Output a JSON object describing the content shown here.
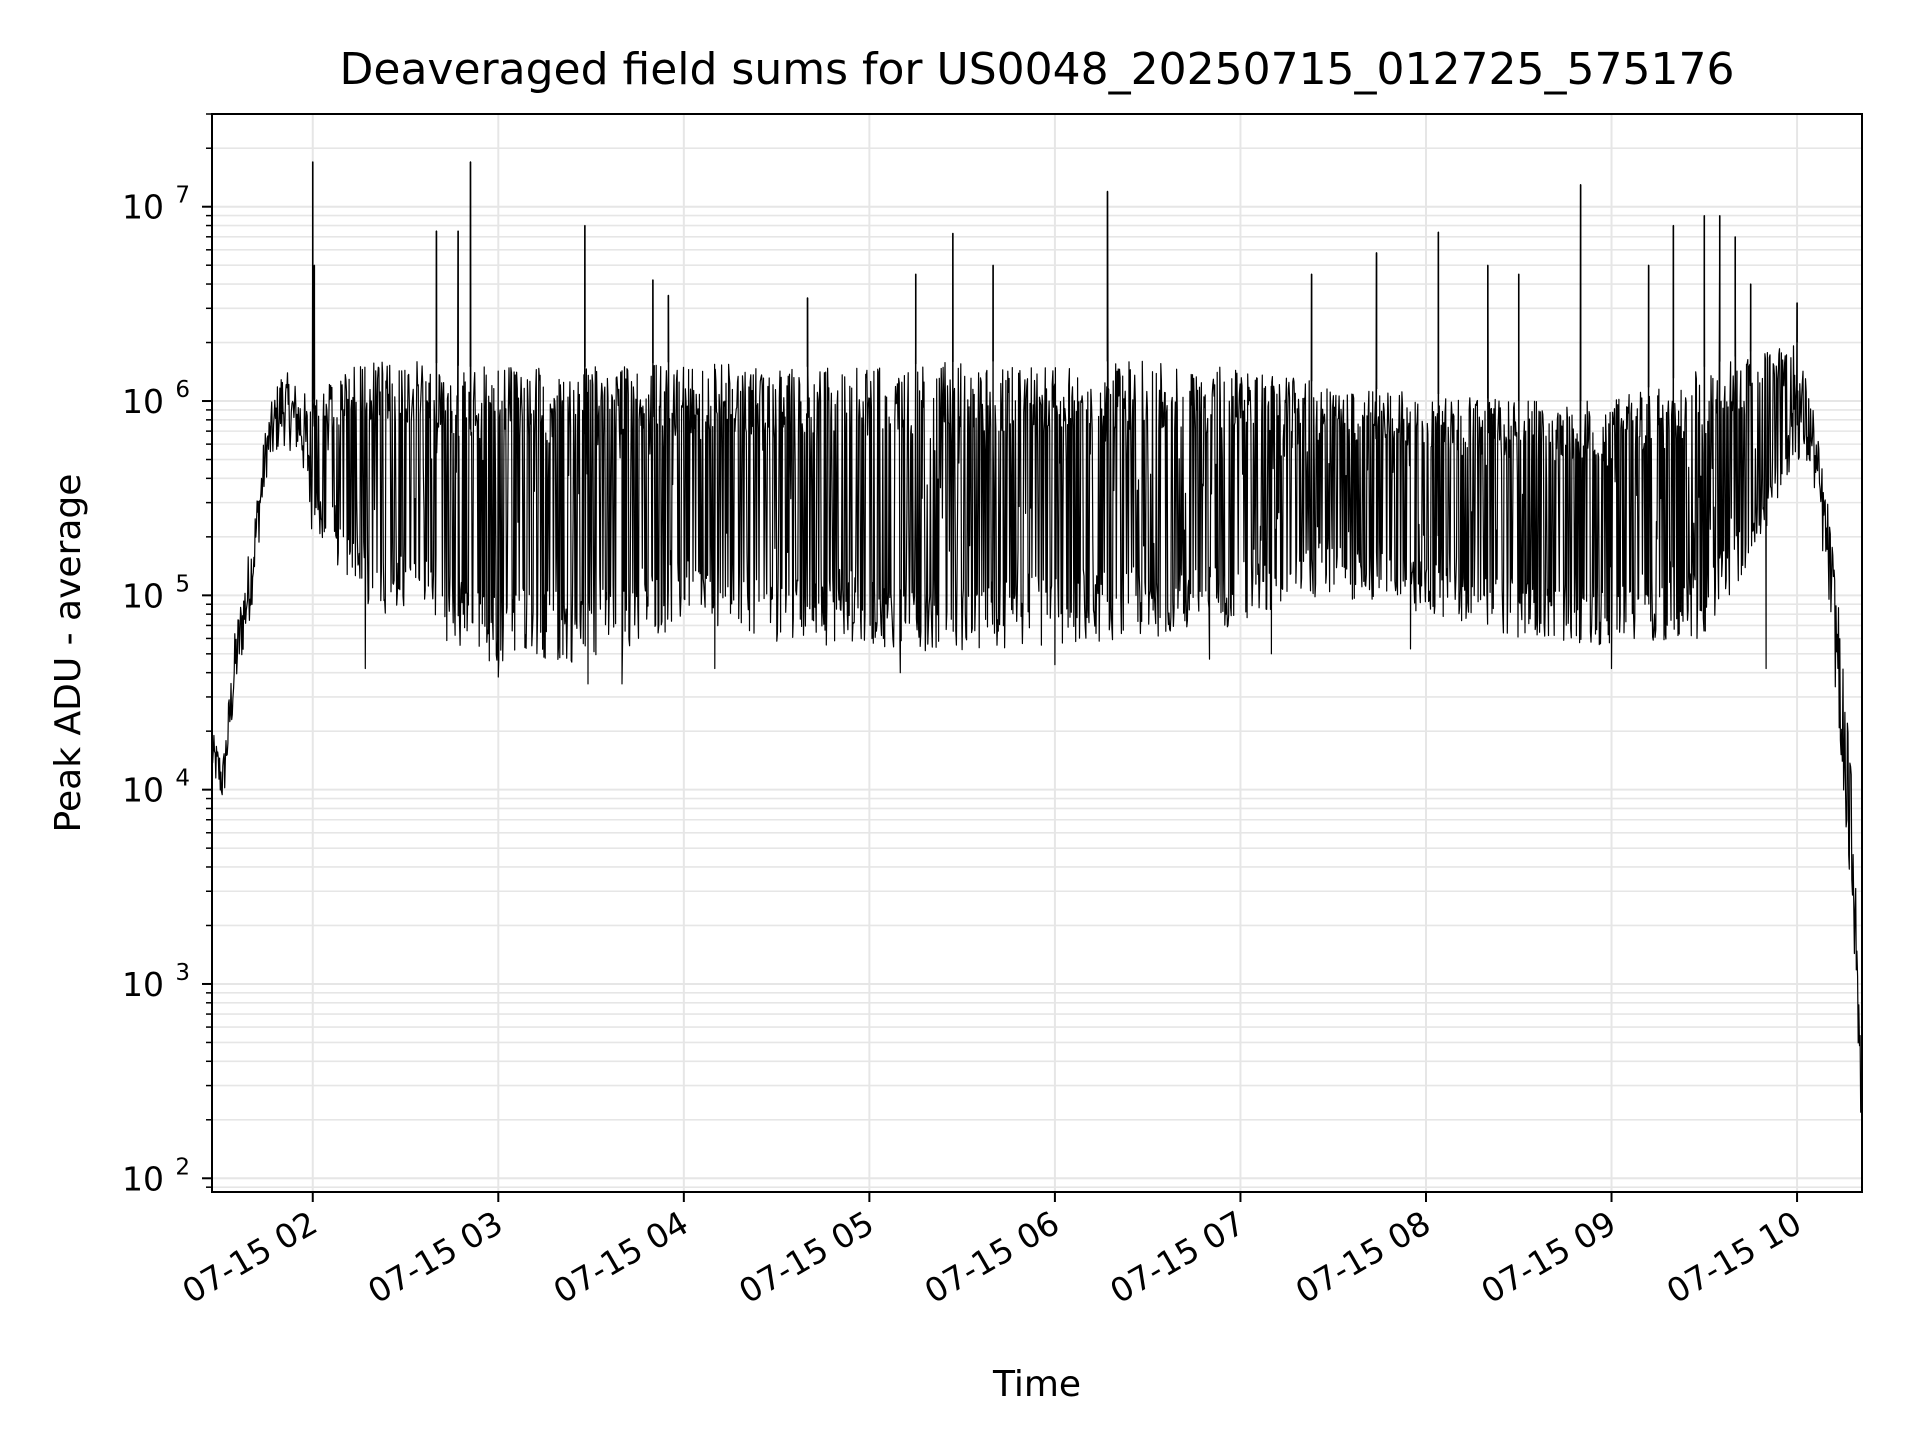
{
  "chart_data": {
    "type": "line",
    "title": "Deaveraged field sums for US0048_20250715_012725_575176",
    "xlabel": "Time",
    "ylabel": "Peak ADU - average",
    "yscale": "log",
    "ylim": [
      85,
      30000000
    ],
    "xlim": [
      "2025-07-15 01:27:25",
      "2025-07-15 10:21:00"
    ],
    "grid": true,
    "line_color": "#000000",
    "grid_color": "#e6e6e6",
    "x_ticks": [
      {
        "label": "07-15 02",
        "time": "2025-07-15 02:00"
      },
      {
        "label": "07-15 03",
        "time": "2025-07-15 03:00"
      },
      {
        "label": "07-15 04",
        "time": "2025-07-15 04:00"
      },
      {
        "label": "07-15 05",
        "time": "2025-07-15 05:00"
      },
      {
        "label": "07-15 06",
        "time": "2025-07-15 06:00"
      },
      {
        "label": "07-15 07",
        "time": "2025-07-15 07:00"
      },
      {
        "label": "07-15 08",
        "time": "2025-07-15 08:00"
      },
      {
        "label": "07-15 09",
        "time": "2025-07-15 09:00"
      },
      {
        "label": "07-15 10",
        "time": "2025-07-15 10:00"
      }
    ],
    "y_ticks": [
      {
        "base": "10",
        "exp": "2",
        "value": 100
      },
      {
        "base": "10",
        "exp": "3",
        "value": 1000
      },
      {
        "base": "10",
        "exp": "4",
        "value": 10000
      },
      {
        "base": "10",
        "exp": "5",
        "value": 100000
      },
      {
        "base": "10",
        "exp": "6",
        "value": 1000000
      },
      {
        "base": "10",
        "exp": "7",
        "value": 10000000
      }
    ],
    "series": [
      {
        "envelope": [
          {
            "time": "2025-07-15 01:27:25",
            "low": 12000,
            "high": 20000
          },
          {
            "time": "2025-07-15 01:31",
            "low": 8000,
            "high": 15000
          },
          {
            "time": "2025-07-15 01:35",
            "low": 30000,
            "high": 70000
          },
          {
            "time": "2025-07-15 01:40",
            "low": 80000,
            "high": 200000
          },
          {
            "time": "2025-07-15 01:45",
            "low": 400000,
            "high": 800000
          },
          {
            "time": "2025-07-15 01:50",
            "low": 600000,
            "high": 1500000
          },
          {
            "time": "2025-07-15 01:56",
            "low": 500000,
            "high": 1200000
          },
          {
            "time": "2025-07-15 02:00",
            "low": 200000,
            "high": 1000000
          },
          {
            "time": "2025-07-15 02:10",
            "low": 130000,
            "high": 1500000
          },
          {
            "time": "2025-07-15 02:20",
            "low": 80000,
            "high": 1600000
          },
          {
            "time": "2025-07-15 02:35",
            "low": 80000,
            "high": 1600000
          },
          {
            "time": "2025-07-15 02:50",
            "low": 45000,
            "high": 1500000
          },
          {
            "time": "2025-07-15 03:30",
            "low": 45000,
            "high": 1500000
          },
          {
            "time": "2025-07-15 04:00",
            "low": 70000,
            "high": 1600000
          },
          {
            "time": "2025-07-15 04:30",
            "low": 55000,
            "high": 1500000
          },
          {
            "time": "2025-07-15 05:00",
            "low": 55000,
            "high": 1500000
          },
          {
            "time": "2025-07-15 05:30",
            "low": 50000,
            "high": 1600000
          },
          {
            "time": "2025-07-15 06:00",
            "low": 55000,
            "high": 1600000
          },
          {
            "time": "2025-07-15 06:30",
            "low": 60000,
            "high": 1600000
          },
          {
            "time": "2025-07-15 07:00",
            "low": 70000,
            "high": 1500000
          },
          {
            "time": "2025-07-15 07:30",
            "low": 100000,
            "high": 1200000
          },
          {
            "time": "2025-07-15 08:00",
            "low": 80000,
            "high": 1100000
          },
          {
            "time": "2025-07-15 08:30",
            "low": 60000,
            "high": 1000000
          },
          {
            "time": "2025-07-15 09:00",
            "low": 55000,
            "high": 1000000
          },
          {
            "time": "2025-07-15 09:30",
            "low": 60000,
            "high": 1500000
          },
          {
            "time": "2025-07-15 09:45",
            "low": 150000,
            "high": 1800000
          },
          {
            "time": "2025-07-15 10:00",
            "low": 500000,
            "high": 2000000
          },
          {
            "time": "2025-07-15 10:05",
            "low": 400000,
            "high": 1000000
          },
          {
            "time": "2025-07-15 10:10",
            "low": 100000,
            "high": 300000
          },
          {
            "time": "2025-07-15 10:15",
            "low": 10000,
            "high": 60000
          },
          {
            "time": "2025-07-15 10:18",
            "low": 2000,
            "high": 10000
          },
          {
            "time": "2025-07-15 10:21",
            "low": 150,
            "high": 300
          }
        ],
        "spikes": [
          {
            "time": "2025-07-15 02:00",
            "value": 17000000
          },
          {
            "time": "2025-07-15 02:00:30",
            "value": 5000000
          },
          {
            "time": "2025-07-15 02:40",
            "value": 7500000
          },
          {
            "time": "2025-07-15 02:47",
            "value": 7500000
          },
          {
            "time": "2025-07-15 02:51",
            "value": 17000000
          },
          {
            "time": "2025-07-15 03:28",
            "value": 8000000
          },
          {
            "time": "2025-07-15 03:50",
            "value": 4200000
          },
          {
            "time": "2025-07-15 03:55",
            "value": 3500000
          },
          {
            "time": "2025-07-15 04:40",
            "value": 3400000
          },
          {
            "time": "2025-07-15 05:15",
            "value": 4500000
          },
          {
            "time": "2025-07-15 05:27",
            "value": 7300000
          },
          {
            "time": "2025-07-15 05:40",
            "value": 5000000
          },
          {
            "time": "2025-07-15 06:17",
            "value": 12000000
          },
          {
            "time": "2025-07-15 07:23",
            "value": 4500000
          },
          {
            "time": "2025-07-15 07:44",
            "value": 5800000
          },
          {
            "time": "2025-07-15 08:04",
            "value": 7400000
          },
          {
            "time": "2025-07-15 08:20",
            "value": 5000000
          },
          {
            "time": "2025-07-15 08:30",
            "value": 4500000
          },
          {
            "time": "2025-07-15 08:50",
            "value": 13000000
          },
          {
            "time": "2025-07-15 09:12",
            "value": 5000000
          },
          {
            "time": "2025-07-15 09:20",
            "value": 8000000
          },
          {
            "time": "2025-07-15 09:30",
            "value": 9000000
          },
          {
            "time": "2025-07-15 09:35",
            "value": 9000000
          },
          {
            "time": "2025-07-15 09:40",
            "value": 7000000
          },
          {
            "time": "2025-07-15 09:45",
            "value": 4000000
          },
          {
            "time": "2025-07-15 10:00",
            "value": 3200000
          }
        ],
        "dips": [
          {
            "time": "2025-07-15 02:17",
            "value": 42000
          },
          {
            "time": "2025-07-15 03:00",
            "value": 38000
          },
          {
            "time": "2025-07-15 03:29",
            "value": 35000
          },
          {
            "time": "2025-07-15 03:40",
            "value": 35000
          },
          {
            "time": "2025-07-15 04:10",
            "value": 42000
          },
          {
            "time": "2025-07-15 05:10",
            "value": 40000
          },
          {
            "time": "2025-07-15 06:00",
            "value": 44000
          },
          {
            "time": "2025-07-15 06:50",
            "value": 47000
          },
          {
            "time": "2025-07-15 07:10",
            "value": 50000
          },
          {
            "time": "2025-07-15 07:55",
            "value": 53000
          },
          {
            "time": "2025-07-15 09:00",
            "value": 42000
          },
          {
            "time": "2025-07-15 09:50",
            "value": 42000
          }
        ]
      }
    ]
  }
}
